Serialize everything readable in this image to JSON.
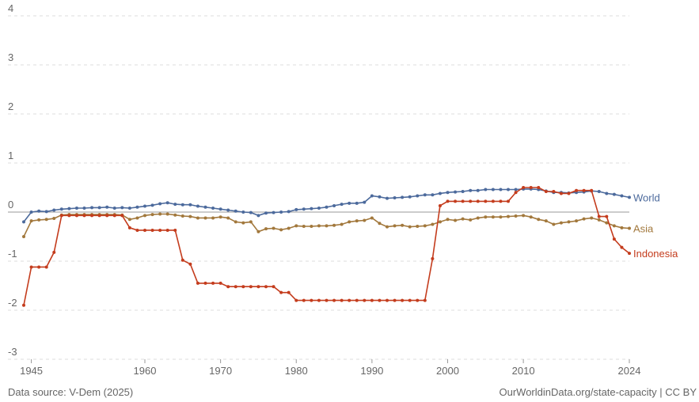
{
  "chart_data": {
    "type": "line",
    "x": [
      1944,
      1945,
      1946,
      1947,
      1948,
      1949,
      1950,
      1951,
      1952,
      1953,
      1954,
      1955,
      1956,
      1957,
      1958,
      1959,
      1960,
      1961,
      1962,
      1963,
      1964,
      1965,
      1966,
      1967,
      1968,
      1969,
      1970,
      1971,
      1972,
      1973,
      1974,
      1975,
      1976,
      1977,
      1978,
      1979,
      1980,
      1981,
      1982,
      1983,
      1984,
      1985,
      1986,
      1987,
      1988,
      1989,
      1990,
      1991,
      1992,
      1993,
      1994,
      1995,
      1996,
      1997,
      1998,
      1999,
      2000,
      2001,
      2002,
      2003,
      2004,
      2005,
      2006,
      2007,
      2008,
      2009,
      2010,
      2011,
      2012,
      2013,
      2014,
      2015,
      2016,
      2017,
      2018,
      2019,
      2020,
      2021,
      2022,
      2023,
      2024
    ],
    "series": [
      {
        "name": "World",
        "color": "#4c6a9c",
        "values": [
          -0.2,
          0.0,
          0.02,
          0.01,
          0.04,
          0.06,
          0.07,
          0.08,
          0.08,
          0.09,
          0.09,
          0.1,
          0.08,
          0.09,
          0.08,
          0.1,
          0.12,
          0.14,
          0.17,
          0.19,
          0.16,
          0.15,
          0.15,
          0.12,
          0.1,
          0.08,
          0.06,
          0.04,
          0.02,
          0.0,
          -0.01,
          -0.07,
          -0.02,
          -0.01,
          0.0,
          0.01,
          0.05,
          0.06,
          0.07,
          0.08,
          0.1,
          0.13,
          0.16,
          0.18,
          0.18,
          0.2,
          0.33,
          0.31,
          0.28,
          0.29,
          0.3,
          0.31,
          0.33,
          0.35,
          0.35,
          0.38,
          0.4,
          0.41,
          0.42,
          0.44,
          0.44,
          0.46,
          0.46,
          0.46,
          0.46,
          0.46,
          0.47,
          0.47,
          0.46,
          0.43,
          0.4,
          0.4,
          0.39,
          0.4,
          0.41,
          0.43,
          0.42,
          0.38,
          0.36,
          0.33,
          0.3
        ]
      },
      {
        "name": "Asia",
        "color": "#a2783c",
        "values": [
          -0.5,
          -0.18,
          -0.16,
          -0.15,
          -0.13,
          -0.06,
          -0.05,
          -0.05,
          -0.05,
          -0.05,
          -0.05,
          -0.05,
          -0.05,
          -0.06,
          -0.15,
          -0.12,
          -0.07,
          -0.05,
          -0.04,
          -0.04,
          -0.06,
          -0.08,
          -0.09,
          -0.12,
          -0.12,
          -0.12,
          -0.1,
          -0.12,
          -0.2,
          -0.22,
          -0.2,
          -0.4,
          -0.34,
          -0.33,
          -0.36,
          -0.33,
          -0.28,
          -0.29,
          -0.29,
          -0.28,
          -0.28,
          -0.27,
          -0.25,
          -0.2,
          -0.18,
          -0.17,
          -0.12,
          -0.23,
          -0.3,
          -0.28,
          -0.27,
          -0.3,
          -0.29,
          -0.28,
          -0.25,
          -0.2,
          -0.15,
          -0.17,
          -0.14,
          -0.16,
          -0.12,
          -0.1,
          -0.1,
          -0.1,
          -0.09,
          -0.08,
          -0.07,
          -0.1,
          -0.15,
          -0.18,
          -0.25,
          -0.22,
          -0.2,
          -0.18,
          -0.14,
          -0.12,
          -0.16,
          -0.22,
          -0.28,
          -0.32,
          -0.33
        ]
      },
      {
        "name": "Indonesia",
        "color": "#c43c1d",
        "values": [
          -1.9,
          -1.12,
          -1.12,
          -1.12,
          -0.82,
          -0.07,
          -0.07,
          -0.07,
          -0.07,
          -0.07,
          -0.07,
          -0.07,
          -0.07,
          -0.07,
          -0.32,
          -0.37,
          -0.37,
          -0.37,
          -0.37,
          -0.37,
          -0.37,
          -0.98,
          -1.06,
          -1.45,
          -1.45,
          -1.45,
          -1.45,
          -1.52,
          -1.52,
          -1.52,
          -1.52,
          -1.52,
          -1.52,
          -1.52,
          -1.64,
          -1.64,
          -1.8,
          -1.8,
          -1.8,
          -1.8,
          -1.8,
          -1.8,
          -1.8,
          -1.8,
          -1.8,
          -1.8,
          -1.8,
          -1.8,
          -1.8,
          -1.8,
          -1.8,
          -1.8,
          -1.8,
          -1.8,
          -0.95,
          0.13,
          0.22,
          0.22,
          0.22,
          0.22,
          0.22,
          0.22,
          0.22,
          0.22,
          0.22,
          0.4,
          0.5,
          0.5,
          0.5,
          0.42,
          0.42,
          0.38,
          0.38,
          0.44,
          0.44,
          0.44,
          -0.09,
          -0.09,
          -0.55,
          -0.72,
          -0.84
        ]
      }
    ],
    "xlim": [
      1944,
      2024
    ],
    "xticks": [
      1945,
      1960,
      1970,
      1980,
      1990,
      2000,
      2010,
      2024
    ],
    "ylim": [
      -3,
      4
    ],
    "yticks": [
      -3,
      -2,
      -1,
      0,
      1,
      2,
      3,
      4
    ],
    "grid": true,
    "source": "Data source: V-Dem (2025)",
    "credit": "OurWorldinData.org/state-capacity | CC BY"
  }
}
